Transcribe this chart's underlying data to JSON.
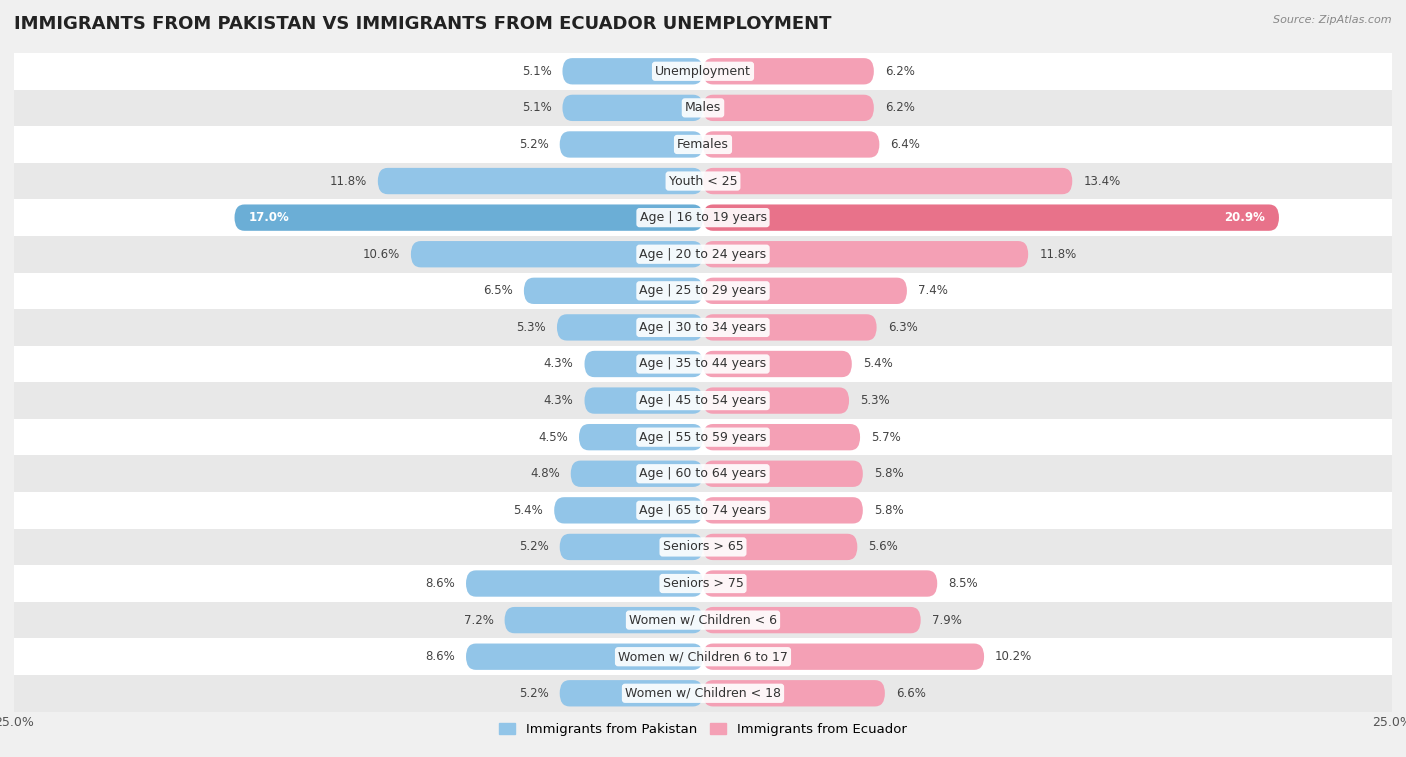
{
  "title": "IMMIGRANTS FROM PAKISTAN VS IMMIGRANTS FROM ECUADOR UNEMPLOYMENT",
  "source": "Source: ZipAtlas.com",
  "categories": [
    "Unemployment",
    "Males",
    "Females",
    "Youth < 25",
    "Age | 16 to 19 years",
    "Age | 20 to 24 years",
    "Age | 25 to 29 years",
    "Age | 30 to 34 years",
    "Age | 35 to 44 years",
    "Age | 45 to 54 years",
    "Age | 55 to 59 years",
    "Age | 60 to 64 years",
    "Age | 65 to 74 years",
    "Seniors > 65",
    "Seniors > 75",
    "Women w/ Children < 6",
    "Women w/ Children 6 to 17",
    "Women w/ Children < 18"
  ],
  "pakistan_values": [
    5.1,
    5.1,
    5.2,
    11.8,
    17.0,
    10.6,
    6.5,
    5.3,
    4.3,
    4.3,
    4.5,
    4.8,
    5.4,
    5.2,
    8.6,
    7.2,
    8.6,
    5.2
  ],
  "ecuador_values": [
    6.2,
    6.2,
    6.4,
    13.4,
    20.9,
    11.8,
    7.4,
    6.3,
    5.4,
    5.3,
    5.7,
    5.8,
    5.8,
    5.6,
    8.5,
    7.9,
    10.2,
    6.6
  ],
  "pakistan_color": "#92C5E8",
  "ecuador_color": "#F4A0B5",
  "highlight_pakistan_color": "#6BAED6",
  "highlight_ecuador_color": "#E8728A",
  "pakistan_label": "Immigrants from Pakistan",
  "ecuador_label": "Immigrants from Ecuador",
  "xlim": 25.0,
  "bar_height": 0.72,
  "background_color": "#f0f0f0",
  "row_colors": [
    "#ffffff",
    "#e8e8e8"
  ],
  "title_fontsize": 13,
  "label_fontsize": 9,
  "value_fontsize": 8.5,
  "axis_fontsize": 9,
  "highlight_rows": [
    4
  ]
}
